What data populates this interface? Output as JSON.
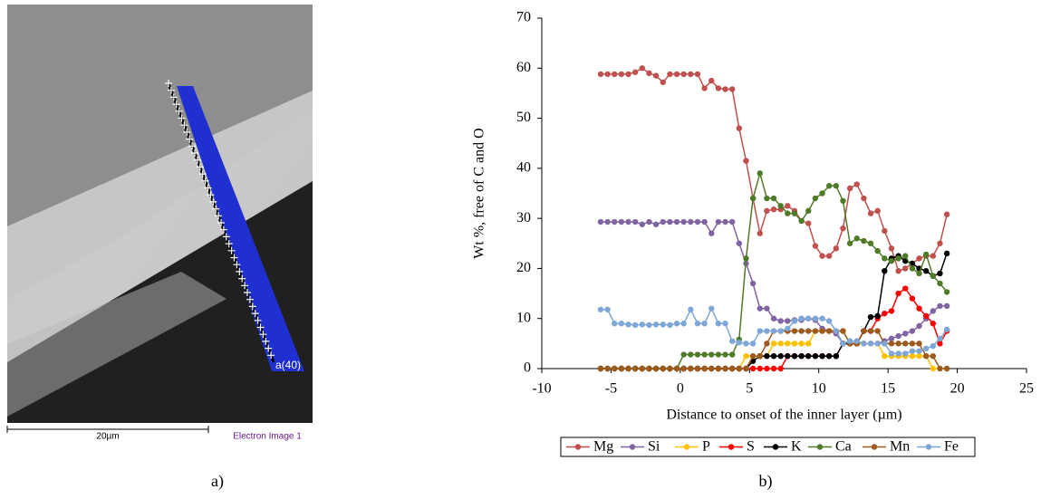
{
  "image_panel": {
    "panel_label": "a)",
    "scale_bar": "20µm",
    "caption": "Electron Image 1",
    "marker_label": "a(40)"
  },
  "chart_data": {
    "type": "line",
    "panel_label": "b)",
    "xlabel": "Distance to onset of the inner layer (µm)",
    "ylabel": "Wt %, free of C and O",
    "xlim": [
      -10,
      25
    ],
    "xticks": [
      -10,
      -5,
      0,
      5,
      10,
      15,
      20,
      25
    ],
    "ylim": [
      0,
      70
    ],
    "yticks": [
      0,
      10,
      20,
      30,
      40,
      50,
      60,
      70
    ],
    "grid": false,
    "legend": "bottom",
    "x": [
      -5.75,
      -5.25,
      -4.75,
      -4.25,
      -3.75,
      -3.25,
      -2.75,
      -2.25,
      -1.75,
      -1.25,
      -0.75,
      -0.25,
      0.25,
      0.75,
      1.25,
      1.75,
      2.25,
      2.75,
      3.25,
      3.75,
      4.25,
      4.75,
      5.25,
      5.75,
      6.25,
      6.75,
      7.25,
      7.75,
      8.25,
      8.75,
      9.25,
      9.75,
      10.25,
      10.75,
      11.25,
      11.75,
      12.25,
      12.75,
      13.25,
      13.75,
      14.25,
      14.75,
      15.25,
      15.75,
      16.25,
      16.75,
      17.25,
      17.75,
      18.25,
      18.75,
      19.25
    ],
    "series": [
      {
        "name": "Mg",
        "color": "#c0504d",
        "values": [
          58.8,
          58.8,
          58.8,
          58.8,
          58.8,
          59.2,
          60,
          59,
          58.5,
          57.2,
          58.8,
          58.8,
          58.8,
          58.8,
          58.8,
          56,
          57.5,
          56,
          55.8,
          55.8,
          48,
          41.5,
          34,
          27,
          31.5,
          31.8,
          31.8,
          32.5,
          31.5,
          29.5,
          29,
          24.5,
          22.5,
          22.5,
          24,
          28,
          36,
          36.8,
          34,
          31,
          31.5,
          27.5,
          24,
          19.5,
          20,
          21,
          22,
          22.5,
          22.5,
          25,
          30.8
        ]
      },
      {
        "name": "Si",
        "color": "#8064a2",
        "values": [
          29.3,
          29.3,
          29.3,
          29.3,
          29.3,
          29.3,
          28.8,
          29.3,
          28.8,
          29.3,
          29.3,
          29.3,
          29.3,
          29.3,
          29.3,
          29.3,
          27,
          29.3,
          29.3,
          29.3,
          25,
          21,
          17,
          12,
          12,
          10,
          9.5,
          9.5,
          9.7,
          9.7,
          10,
          9.7,
          8,
          7.5,
          7,
          5,
          5,
          5,
          5,
          5,
          5,
          5.5,
          6,
          6.5,
          7,
          7.5,
          8.5,
          10,
          11.5,
          12.5,
          12.5
        ]
      },
      {
        "name": "P",
        "color": "#ffc000",
        "values": [
          0,
          0,
          0,
          0,
          0,
          0,
          0,
          0,
          0,
          0,
          0,
          0,
          0,
          0,
          0,
          0,
          0,
          0,
          0,
          0,
          0,
          2.5,
          2.5,
          2.5,
          2.5,
          5,
          5,
          5,
          5,
          5,
          5,
          7.5,
          7.5,
          7.5,
          7.5,
          7.5,
          5,
          5,
          5,
          5,
          5,
          2.5,
          2.5,
          2.5,
          2.5,
          2.5,
          2.5,
          2.5,
          0,
          0,
          0
        ]
      },
      {
        "name": "S",
        "color": "#ff0000",
        "values": [
          0,
          0,
          0,
          0,
          0,
          0,
          0,
          0,
          0,
          0,
          0,
          0,
          0,
          0,
          0,
          0,
          0,
          0,
          0,
          0,
          0,
          0,
          0,
          0,
          0,
          0,
          0,
          2.5,
          2.5,
          2.5,
          2.5,
          2.5,
          2.5,
          2.5,
          2.5,
          5,
          5,
          5,
          7.5,
          7.5,
          10,
          11,
          11.5,
          15,
          16,
          14,
          12,
          10.5,
          9,
          5,
          7.5
        ]
      },
      {
        "name": "K",
        "color": "#000000",
        "values": [
          0,
          0,
          0,
          0,
          0,
          0,
          0,
          0,
          0,
          0,
          0,
          0,
          0,
          0,
          0,
          0,
          0,
          0,
          0,
          0,
          0,
          0,
          1.5,
          2.5,
          2.5,
          2.5,
          2.5,
          2.5,
          2.5,
          2.5,
          2.5,
          2.5,
          2.5,
          2.5,
          2.5,
          5,
          5,
          5,
          7.5,
          10.3,
          10.5,
          19.5,
          22,
          22.5,
          21.5,
          21,
          20,
          19.5,
          18.5,
          19,
          23
        ]
      },
      {
        "name": "Ca",
        "color": "#4f7a28",
        "values": [
          0,
          0,
          0,
          0,
          0,
          0,
          0,
          0,
          0,
          0,
          0,
          0,
          2.8,
          2.8,
          2.8,
          2.8,
          2.8,
          2.8,
          2.8,
          2.8,
          5.8,
          22,
          34,
          39,
          34,
          34,
          32.5,
          31,
          31,
          29.5,
          31.5,
          34,
          35,
          36.5,
          36.5,
          33.5,
          25,
          26,
          25.5,
          25,
          23.5,
          22,
          21.5,
          22,
          22.5,
          20,
          19,
          22.8,
          18.5,
          17,
          15.3
        ]
      },
      {
        "name": "Mn",
        "color": "#9c5a1e",
        "values": [
          0,
          0,
          0,
          0,
          0,
          0,
          0,
          0,
          0,
          0,
          0,
          0,
          0,
          0,
          0,
          0,
          0,
          0,
          0,
          0,
          0,
          0,
          2.5,
          2.5,
          5,
          7.5,
          7.5,
          7.5,
          7.5,
          7.5,
          7.5,
          7.5,
          7.5,
          7.5,
          7.5,
          7.5,
          5,
          5,
          7.5,
          7.5,
          7.5,
          5,
          5,
          5,
          5,
          5,
          5,
          2.5,
          2.5,
          0,
          0
        ]
      },
      {
        "name": "Fe",
        "color": "#7ea6d6",
        "values": [
          11.8,
          11.8,
          9,
          9,
          8.8,
          8.7,
          8.8,
          8.7,
          8.8,
          8.8,
          8.7,
          9,
          9,
          11.8,
          9,
          9,
          12,
          9,
          9,
          5.5,
          5.2,
          5,
          5,
          7.5,
          7.5,
          7.5,
          7.5,
          8,
          9.5,
          10,
          10,
          10,
          10,
          9.5,
          7.5,
          5,
          5.5,
          5.5,
          5,
          5,
          5,
          5,
          3,
          3,
          3,
          3.5,
          3.5,
          4,
          4.5,
          6,
          7.8
        ]
      }
    ]
  }
}
